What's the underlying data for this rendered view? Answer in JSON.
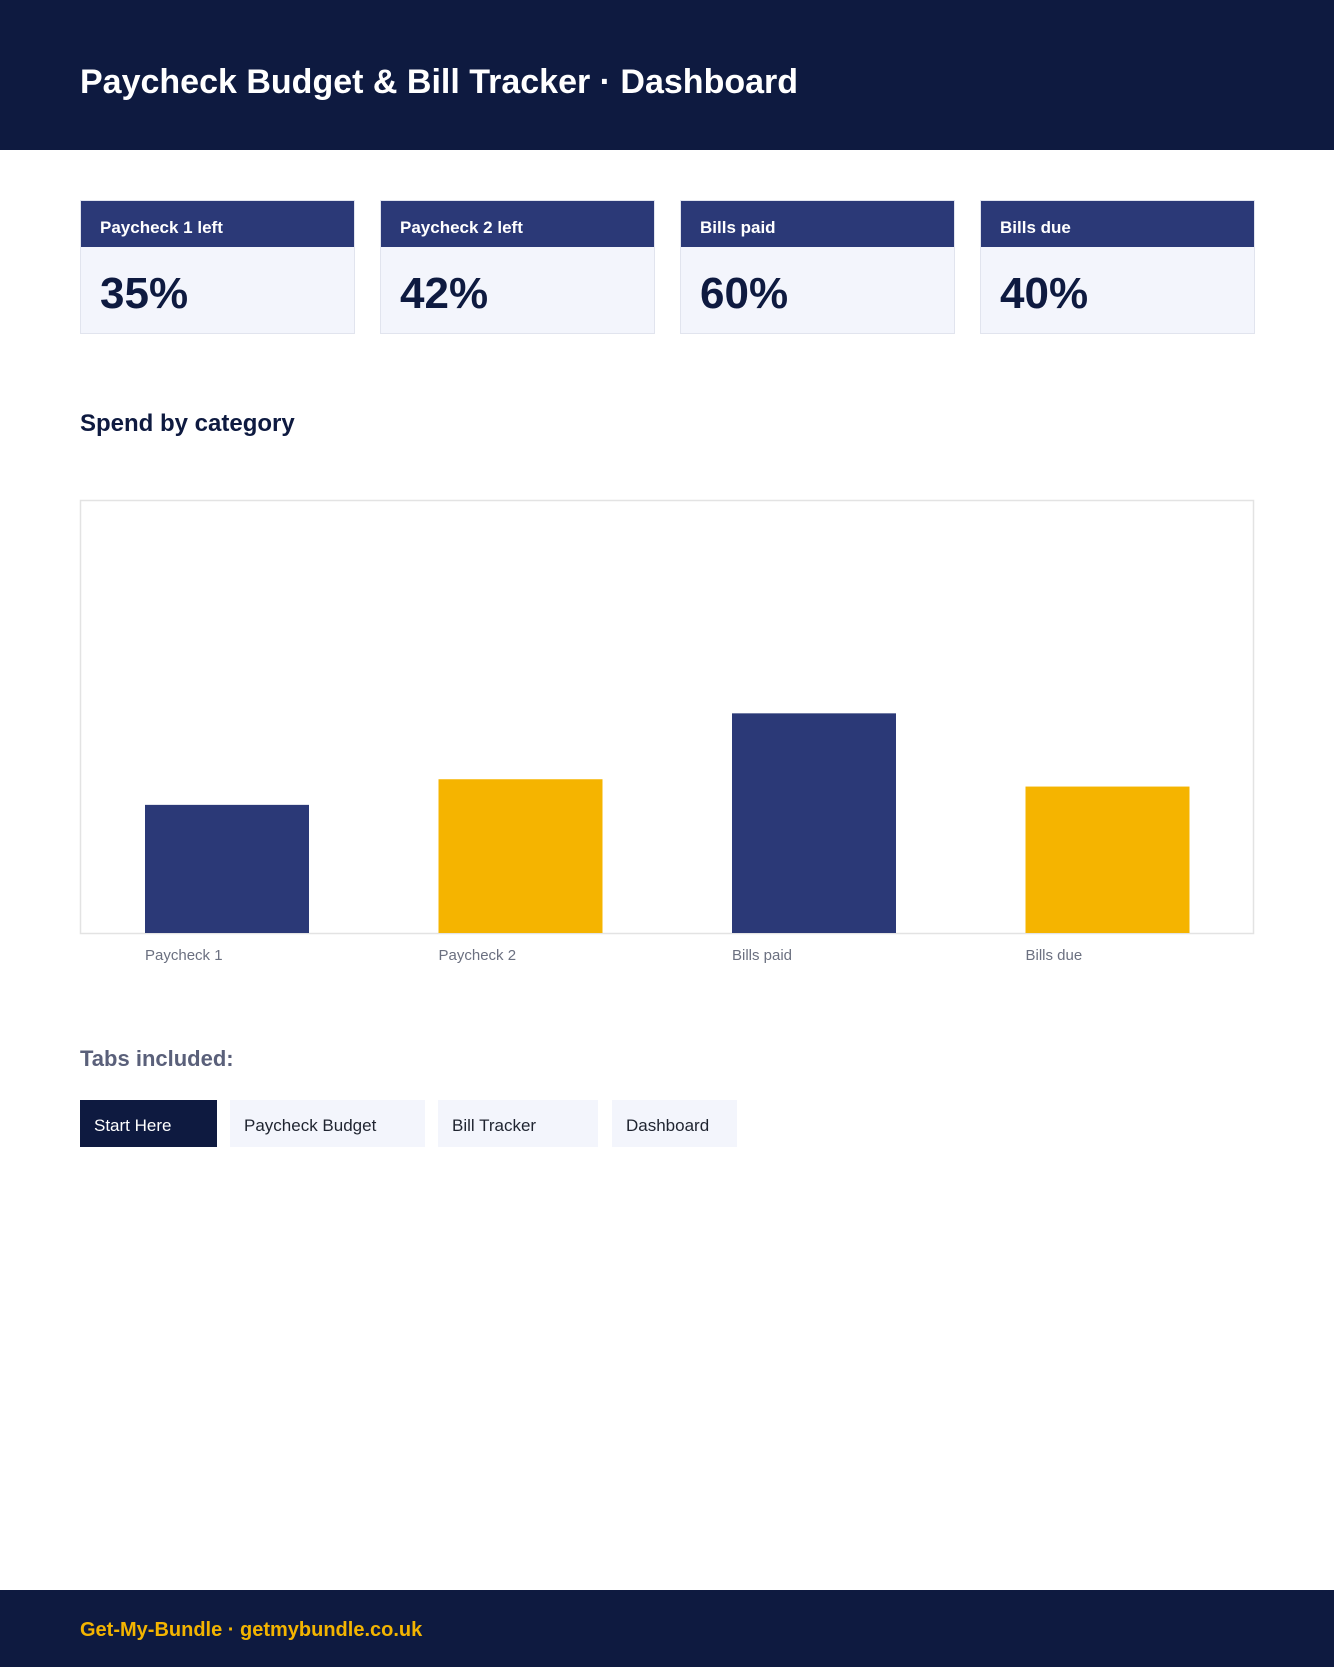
{
  "header": {
    "title": "Paycheck Budget & Bill Tracker · Dashboard"
  },
  "kpis": [
    {
      "label": "Paycheck 1 left",
      "value": "35%"
    },
    {
      "label": "Paycheck 2 left",
      "value": "42%"
    },
    {
      "label": "Bills paid",
      "value": "60%"
    },
    {
      "label": "Bills due",
      "value": "40%"
    }
  ],
  "section": {
    "title": "Spend by category"
  },
  "chart_data": {
    "type": "bar",
    "categories": [
      "Paycheck 1",
      "Paycheck 2",
      "Bills paid",
      "Bills due"
    ],
    "values": [
      35,
      42,
      60,
      40
    ],
    "ylim": [
      0,
      118
    ],
    "colors": [
      "#2b3977",
      "#f5b400",
      "#2b3977",
      "#f5b400"
    ],
    "grid": false
  },
  "tabs": {
    "title": "Tabs included:",
    "items": [
      {
        "label": "Start Here",
        "active": true
      },
      {
        "label": "Paycheck Budget",
        "active": false
      },
      {
        "label": "Bill Tracker",
        "active": false
      },
      {
        "label": "Dashboard",
        "active": false
      }
    ]
  },
  "footer": {
    "text": "Get-My-Bundle · getmybundle.co.uk"
  }
}
